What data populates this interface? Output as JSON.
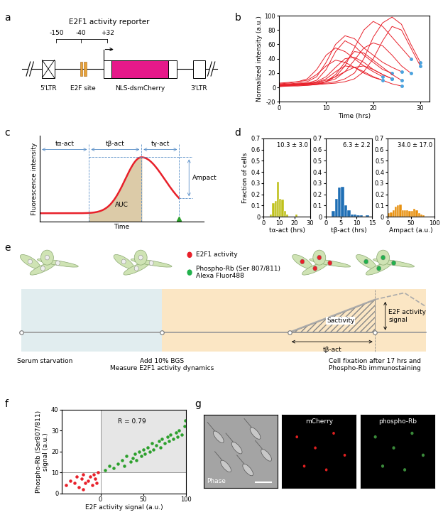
{
  "panel_labels": [
    "a",
    "b",
    "c",
    "d",
    "e",
    "f",
    "g"
  ],
  "panel_a": {
    "title": "E2F1 activity reporter",
    "positions": [
      "-150",
      "-40",
      "+32"
    ],
    "elements": [
      "5'LTR",
      "E2F site",
      "NLS-dsmCherry",
      "3'LTR"
    ]
  },
  "panel_c": {
    "x_label": "Time",
    "y_label": "Fluorescence intensity",
    "intervals": [
      "tα-act",
      "tβ-act",
      "tγ-act"
    ],
    "area": "AUC",
    "amplitude": "Ampact"
  },
  "panel_e": {
    "legend": [
      {
        "label": "E2F1 activity",
        "color": "#e8202a"
      },
      {
        "label": "Phospho-Rb (Ser 807/811)\nAlexa Fluor488",
        "color": "#22b14c"
      }
    ],
    "steps": [
      "Serum starvation",
      "Add 10% BGS\nMeasure E2F1 activity dynamics",
      "Cell fixation after 17 hrs and\nPhospho-Rb immunostaining"
    ],
    "area": "Sactivity",
    "interval": "tβ-act",
    "signal": "E2F activity\nsignal"
  },
  "panel_g": {
    "channels": [
      "Phase",
      "mCherry",
      "phospho-Rb"
    ]
  },
  "chart_data": [
    {
      "type": "line",
      "x_label": "Time (hrs)",
      "y_label": "Normalized intensity (a.u.)",
      "color": "#e8202a",
      "xlim": [
        0,
        32
      ],
      "xticks": [
        0,
        10,
        20,
        30
      ],
      "ylim": [
        -20,
        100
      ],
      "yticks": [
        -20,
        0,
        20,
        40,
        60,
        80,
        100
      ],
      "series": [
        {
          "x": [
            0,
            2,
            4,
            6,
            8,
            10,
            12,
            14,
            16,
            18,
            20,
            22,
            24
          ],
          "values": [
            3,
            4,
            5,
            6,
            10,
            25,
            50,
            65,
            58,
            45,
            35,
            25,
            20
          ]
        },
        {
          "x": [
            0,
            2,
            4,
            6,
            8,
            10,
            12,
            14,
            16,
            18,
            20,
            22,
            24,
            26
          ],
          "values": [
            4,
            5,
            6,
            8,
            15,
            35,
            60,
            72,
            68,
            55,
            45,
            35,
            28,
            22
          ]
        },
        {
          "x": [
            0,
            2,
            4,
            6,
            8,
            10,
            12,
            14,
            16,
            18,
            20,
            22,
            24,
            26,
            28
          ],
          "values": [
            2,
            3,
            3,
            4,
            5,
            8,
            15,
            30,
            55,
            80,
            92,
            85,
            70,
            55,
            40
          ]
        },
        {
          "x": [
            0,
            2,
            4,
            6,
            8,
            10,
            12,
            14,
            16,
            18,
            20,
            22,
            24,
            26,
            28,
            30
          ],
          "values": [
            3,
            3,
            4,
            4,
            5,
            6,
            8,
            12,
            20,
            40,
            70,
            90,
            98,
            88,
            60,
            35
          ]
        },
        {
          "x": [
            0,
            2,
            4,
            6,
            8,
            10,
            12,
            14,
            16,
            18,
            20,
            22
          ],
          "values": [
            5,
            6,
            8,
            12,
            25,
            45,
            55,
            50,
            40,
            30,
            22,
            15
          ]
        },
        {
          "x": [
            0,
            2,
            4,
            6,
            8,
            10,
            12,
            14,
            16,
            18,
            20,
            22,
            24
          ],
          "values": [
            2,
            3,
            4,
            5,
            8,
            15,
            28,
            40,
            42,
            35,
            25,
            18,
            12
          ]
        },
        {
          "x": [
            0,
            2,
            4,
            6,
            8,
            10,
            12,
            14,
            16,
            18,
            20,
            22,
            24,
            26
          ],
          "values": [
            1,
            2,
            2,
            3,
            4,
            8,
            18,
            35,
            50,
            48,
            38,
            28,
            18,
            10
          ]
        },
        {
          "x": [
            0,
            2,
            4,
            6,
            8,
            10,
            12,
            14,
            16,
            18,
            20,
            22,
            24,
            26,
            28
          ],
          "values": [
            3,
            4,
            4,
            5,
            6,
            8,
            12,
            22,
            38,
            55,
            62,
            58,
            45,
            30,
            20
          ]
        },
        {
          "x": [
            0,
            2,
            4,
            6,
            8,
            10,
            12,
            14,
            16,
            18,
            20,
            22,
            24
          ],
          "values": [
            4,
            4,
            5,
            6,
            7,
            10,
            15,
            22,
            28,
            30,
            25,
            18,
            12
          ]
        },
        {
          "x": [
            0,
            2,
            4,
            6,
            8,
            10,
            12,
            14,
            16,
            18,
            20,
            22,
            24,
            26
          ],
          "values": [
            2,
            3,
            4,
            5,
            7,
            12,
            22,
            30,
            28,
            22,
            15,
            10,
            5,
            2
          ]
        },
        {
          "x": [
            0,
            2,
            4,
            6,
            8,
            10,
            12,
            14,
            16,
            18,
            20,
            22,
            24,
            26,
            28,
            30
          ],
          "values": [
            2,
            2,
            3,
            3,
            4,
            5,
            6,
            8,
            12,
            22,
            40,
            65,
            85,
            80,
            55,
            30
          ]
        },
        {
          "x": [
            0,
            2,
            4,
            6,
            8,
            10,
            12,
            14,
            16,
            18,
            20,
            22
          ],
          "values": [
            6,
            7,
            8,
            10,
            18,
            30,
            38,
            35,
            28,
            20,
            14,
            10
          ]
        }
      ]
    },
    {
      "type": "histogram",
      "x_label": "tα-act (hrs)",
      "y_label": "Fraction of cells",
      "annotation": "10.3 ± 3.0",
      "color": "#bfc11a",
      "bins": [
        4,
        5.5,
        7,
        8.5,
        10,
        11.5,
        13,
        14.5,
        16,
        17.5,
        19,
        20.5,
        22
      ],
      "counts": [
        0.02,
        0.12,
        0.14,
        0.31,
        0.16,
        0.15,
        0.05,
        0.02,
        0,
        0,
        0,
        0.02
      ],
      "xlim": [
        0,
        30
      ],
      "xticks": [
        0,
        10,
        20,
        30
      ],
      "ylim": [
        0,
        0.7
      ],
      "yticks": [
        0,
        0.1,
        0.2,
        0.3,
        0.4,
        0.5,
        0.6,
        0.7
      ]
    },
    {
      "type": "histogram",
      "x_label": "tβ-act (hrs)",
      "annotation": "6.3 ± 2.2",
      "color": "#1f6fb5",
      "bins": [
        2,
        3,
        4,
        5,
        6,
        7,
        8,
        9,
        10,
        11,
        12,
        13,
        14
      ],
      "counts": [
        0.05,
        0.16,
        0.26,
        0.27,
        0.1,
        0.06,
        0.02,
        0.02,
        0.01,
        0.01,
        0,
        0.01
      ],
      "xlim": [
        0,
        15
      ],
      "xticks": [
        0,
        5,
        10,
        15
      ],
      "ylim": [
        0,
        0.7
      ],
      "yticks": [
        0,
        0.1,
        0.2,
        0.3,
        0.4,
        0.5,
        0.6,
        0.7
      ]
    },
    {
      "type": "histogram",
      "x_label": "Ampact (a.u.)",
      "annotation": "34.0 ± 17.0",
      "color": "#e8900f",
      "bins": [
        0,
        5,
        10,
        15,
        20,
        25,
        30,
        35,
        40,
        45,
        50,
        55,
        60,
        65,
        70,
        75,
        80
      ],
      "counts": [
        0.03,
        0.04,
        0.06,
        0.09,
        0.1,
        0.11,
        0.06,
        0.06,
        0.06,
        0.05,
        0.05,
        0.07,
        0.06,
        0.03,
        0.02,
        0.01
      ],
      "xlim": [
        0,
        100
      ],
      "xticks": [
        0,
        50,
        100
      ],
      "ylim": [
        0,
        0.7
      ],
      "yticks": [
        0,
        0.1,
        0.2,
        0.3,
        0.4,
        0.5,
        0.6,
        0.7
      ]
    },
    {
      "type": "scatter",
      "x_label": "E2F activity signal (a.u.)",
      "y_label": "Phospho-Rb (Ser807/811)\nsignal (a.u.)",
      "annotation": "R = 0.79",
      "xlim": [
        -45,
        100
      ],
      "xticks": [
        0,
        50,
        100
      ],
      "ylim": [
        0,
        40
      ],
      "yticks": [
        0,
        10,
        20,
        30,
        40
      ],
      "thresholds": {
        "x": 0,
        "y": 10
      },
      "series": [
        {
          "color": "#e8202a",
          "x": [
            -40,
            -35,
            -30,
            -28,
            -25,
            -22,
            -20,
            -18,
            -15,
            -12,
            -10,
            -8,
            -6,
            -5,
            -3,
            -20
          ],
          "values": [
            4,
            6,
            5,
            8,
            3,
            7,
            9,
            5,
            6,
            8,
            4,
            9,
            7,
            5,
            10,
            2
          ]
        },
        {
          "color": "#2ca02c",
          "x": [
            5,
            10,
            15,
            20,
            25,
            28,
            30,
            35,
            38,
            40,
            42,
            45,
            48,
            50,
            52,
            55,
            58,
            60,
            62,
            65,
            68,
            70,
            72,
            75,
            78,
            80,
            82,
            85,
            88,
            90,
            92,
            95,
            98,
            99
          ],
          "values": [
            11,
            13,
            12,
            14,
            16,
            13,
            18,
            15,
            17,
            19,
            16,
            20,
            18,
            21,
            19,
            22,
            20,
            24,
            21,
            23,
            25,
            22,
            26,
            24,
            27,
            25,
            28,
            26,
            29,
            27,
            30,
            28,
            32,
            35
          ]
        }
      ]
    }
  ]
}
